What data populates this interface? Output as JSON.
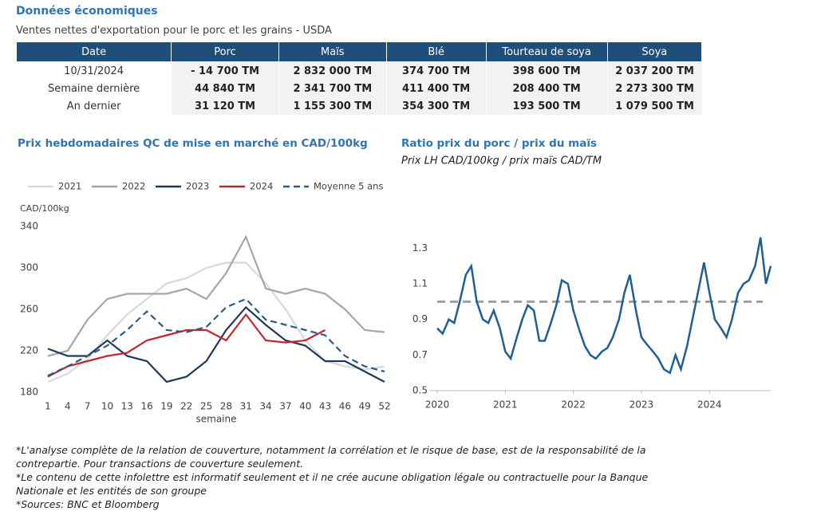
{
  "header": {
    "title": "Données économiques",
    "subtitle": "Ventes nettes d'exportation pour le porc et les grains - USDA"
  },
  "table": {
    "columns": [
      "Date",
      "Porc",
      "Maïs",
      "Blé",
      "Tourteau de soya",
      "Soya"
    ],
    "rows": [
      [
        "10/31/2024",
        "- 14 700 TM",
        "2 832 000 TM",
        "374 700 TM",
        "398 600 TM",
        "2 037 200 TM"
      ],
      [
        "Semaine dernière",
        "44 840 TM",
        "2 341 700 TM",
        "411 400 TM",
        "208 400 TM",
        "2 273 300 TM"
      ],
      [
        "An dernier",
        "31 120 TM",
        "1 155 300 TM",
        "354 300 TM",
        "193 500 TM",
        "1 079 500 TM"
      ]
    ]
  },
  "chart_data": [
    {
      "type": "line",
      "title": "Prix hebdomadaires QC de mise en marché en CAD/100kg",
      "y_label": "CAD/100kg",
      "x_label": "semaine",
      "x": [
        1,
        4,
        7,
        10,
        13,
        16,
        19,
        22,
        25,
        28,
        31,
        34,
        37,
        40,
        43,
        46,
        49,
        52
      ],
      "xlim": [
        1,
        52
      ],
      "xticks": [
        1,
        4,
        7,
        10,
        13,
        16,
        19,
        22,
        25,
        28,
        31,
        34,
        37,
        40,
        43,
        46,
        49,
        52
      ],
      "ylim": [
        180,
        340
      ],
      "yticks": [
        180,
        220,
        260,
        300,
        340
      ],
      "grid": false,
      "series": [
        {
          "name": "2021",
          "color": "#d9d9d9",
          "dash": false,
          "values": [
            190,
            198,
            212,
            235,
            255,
            270,
            285,
            290,
            300,
            305,
            305,
            285,
            260,
            230,
            210,
            205,
            202,
            205
          ]
        },
        {
          "name": "2022",
          "color": "#a6a6a6",
          "dash": false,
          "values": [
            215,
            220,
            250,
            270,
            275,
            275,
            275,
            280,
            270,
            295,
            330,
            280,
            275,
            280,
            275,
            260,
            240,
            238
          ]
        },
        {
          "name": "2023",
          "color": "#1f3b57",
          "dash": false,
          "values": [
            222,
            215,
            215,
            230,
            215,
            210,
            190,
            195,
            210,
            240,
            262,
            245,
            230,
            225,
            210,
            210,
            200,
            190
          ]
        },
        {
          "name": "2024",
          "color": "#c0272d",
          "dash": false,
          "values": [
            195,
            205,
            210,
            215,
            218,
            230,
            235,
            240,
            240,
            230,
            255,
            230,
            228,
            230,
            240,
            null,
            null,
            null
          ]
        },
        {
          "name": "Moyenne 5 ans",
          "color": "#2a5b8c",
          "dash": true,
          "values": [
            196,
            205,
            215,
            225,
            240,
            258,
            240,
            238,
            243,
            262,
            270,
            250,
            245,
            240,
            235,
            215,
            205,
            200
          ]
        }
      ]
    },
    {
      "type": "line",
      "title": "Ratio prix du porc / prix du maïs",
      "subtitle": "Prix LH CAD/100kg / prix maïs CAD/TM",
      "xlim": [
        2020,
        2024.9
      ],
      "xticks": [
        2020,
        2021,
        2022,
        2023,
        2024
      ],
      "ylim": [
        0.5,
        1.4
      ],
      "yticks": [
        0.5,
        0.7,
        0.9,
        1.1,
        1.3
      ],
      "grid": false,
      "reference_line": 1.0,
      "reference_color": "#a0a0a0",
      "x": [
        2020,
        2020.08,
        2020.17,
        2020.25,
        2020.33,
        2020.42,
        2020.5,
        2020.58,
        2020.67,
        2020.75,
        2020.83,
        2020.92,
        2021,
        2021.08,
        2021.17,
        2021.25,
        2021.33,
        2021.42,
        2021.5,
        2021.58,
        2021.67,
        2021.75,
        2021.83,
        2021.92,
        2022,
        2022.08,
        2022.17,
        2022.25,
        2022.33,
        2022.42,
        2022.5,
        2022.58,
        2022.67,
        2022.75,
        2022.83,
        2022.92,
        2023,
        2023.08,
        2023.17,
        2023.25,
        2023.33,
        2023.42,
        2023.5,
        2023.58,
        2023.67,
        2023.75,
        2023.83,
        2023.92,
        2024,
        2024.08,
        2024.17,
        2024.25,
        2024.33,
        2024.42,
        2024.5,
        2024.58,
        2024.67,
        2024.75,
        2024.83,
        2024.9
      ],
      "series": [
        {
          "name": "Ratio",
          "color": "#1f5f93",
          "dash": false,
          "values": [
            0.85,
            0.82,
            0.9,
            0.88,
            1.0,
            1.15,
            1.2,
            1.0,
            0.9,
            0.88,
            0.95,
            0.85,
            0.72,
            0.68,
            0.8,
            0.9,
            0.98,
            0.95,
            0.78,
            0.78,
            0.88,
            0.98,
            1.12,
            1.1,
            0.95,
            0.85,
            0.75,
            0.7,
            0.68,
            0.72,
            0.74,
            0.8,
            0.9,
            1.05,
            1.15,
            0.95,
            0.8,
            0.76,
            0.72,
            0.68,
            0.62,
            0.6,
            0.7,
            0.62,
            0.75,
            0.9,
            1.05,
            1.22,
            1.05,
            0.9,
            0.85,
            0.8,
            0.9,
            1.05,
            1.1,
            1.12,
            1.2,
            1.36,
            1.1,
            1.2
          ]
        }
      ]
    }
  ],
  "notes": [
    "*L'analyse complète de la relation de couverture, notamment la corrélation et le risque de base, est de la responsabilité de la contrepartie. Pour transactions de couverture seulement.",
    "*Le contenu de cette infolettre est informatif seulement et il ne crée aucune obligation légale ou contractuelle pour la Banque Nationale et les entités de son groupe",
    "*Sources: BNC et Bloomberg"
  ]
}
